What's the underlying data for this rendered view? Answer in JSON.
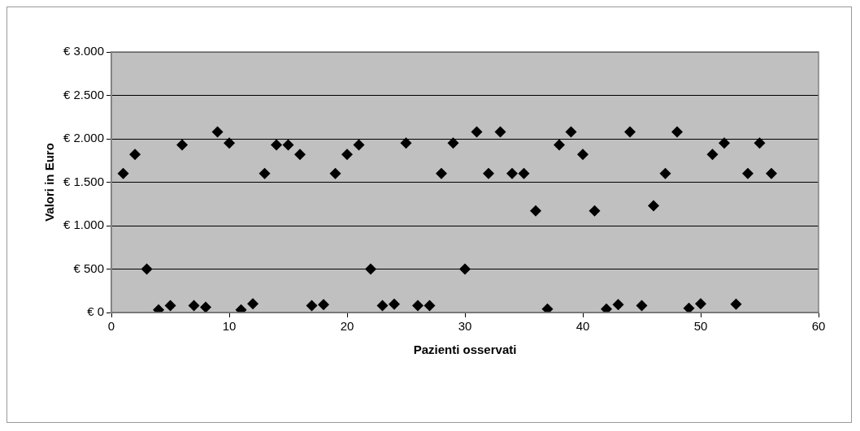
{
  "chart_data": {
    "type": "scatter",
    "xlabel": "Pazienti osservati",
    "ylabel": "Valori in Euro",
    "x": [
      1,
      2,
      3,
      4,
      5,
      6,
      7,
      8,
      9,
      10,
      11,
      12,
      13,
      14,
      15,
      16,
      17,
      18,
      19,
      20,
      21,
      22,
      23,
      24,
      25,
      26,
      27,
      28,
      29,
      30,
      31,
      32,
      33,
      34,
      35,
      36,
      37,
      38,
      39,
      40,
      41,
      42,
      43,
      44,
      45,
      46,
      47,
      48,
      49,
      50,
      51,
      52,
      53,
      54,
      55,
      56
    ],
    "series": [
      {
        "color": "#000000",
        "values": [
          1600,
          1820,
          500,
          30,
          80,
          1930,
          80,
          60,
          2080,
          1950,
          30,
          100,
          1600,
          1930,
          1930,
          1820,
          80,
          90,
          1600,
          1820,
          1930,
          500,
          80,
          95,
          1950,
          80,
          80,
          1600,
          1950,
          500,
          2080,
          1600,
          2080,
          1600,
          1600,
          1170,
          40,
          1930,
          2080,
          1820,
          1170,
          40,
          90,
          2080,
          80,
          1230,
          1600,
          2080,
          50,
          100,
          1820,
          1950,
          95,
          1600,
          1950,
          1600
        ]
      }
    ],
    "xlim": [
      0,
      60
    ],
    "xticks": [
      0,
      10,
      20,
      30,
      40,
      50,
      60
    ],
    "ylim": [
      0,
      3000
    ],
    "yticks": [
      {
        "value": 0,
        "label": "€ 0"
      },
      {
        "value": 500,
        "label": "€ 500"
      },
      {
        "value": 1000,
        "label": "€ 1.000"
      },
      {
        "value": 1500,
        "label": "€ 1.500"
      },
      {
        "value": 2000,
        "label": "€ 2.000"
      },
      {
        "value": 2500,
        "label": "€ 2.500"
      },
      {
        "value": 3000,
        "label": "€ 3.000"
      }
    ],
    "grid": "y",
    "marker": "diamond",
    "legend": false
  }
}
